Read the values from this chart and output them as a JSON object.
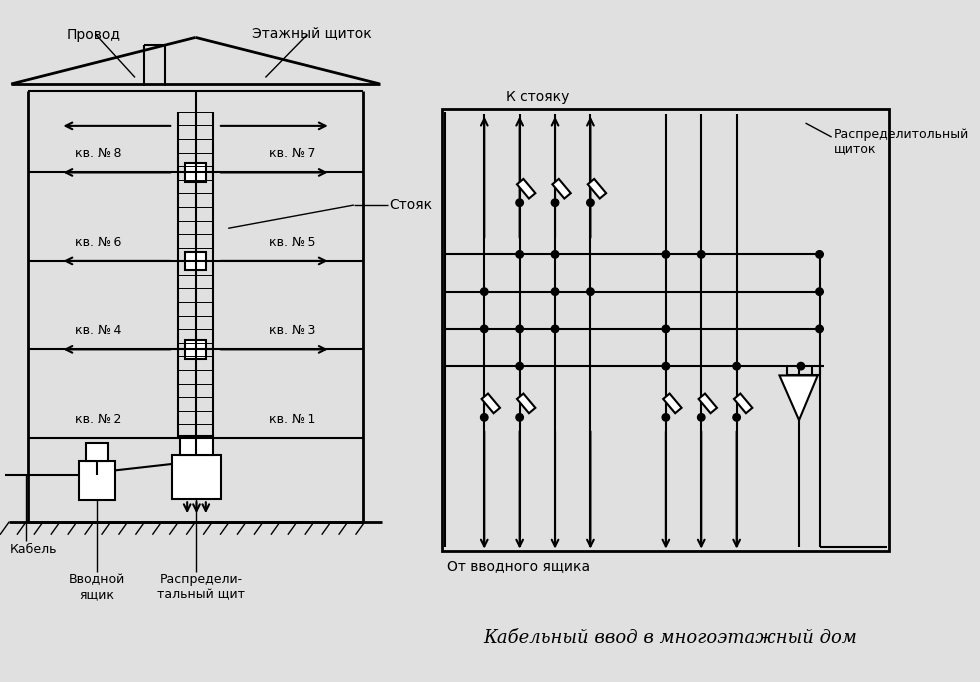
{
  "bg_color": "#e8e8e8",
  "line_color": "#000000",
  "title": "Кабельный ввод в многоэтажный дом",
  "label_provod": "Провод",
  "label_etazh": "Этажный щиток",
  "label_stoyak": "Стояк",
  "label_kabel": "Кабель",
  "label_vvodnoy": "Вводной\nящик",
  "label_rasp_shit": "Распредели-\nтальный щит",
  "label_k_stoyaku": "К стояку",
  "label_rasp_shitok": "Распределитольный\nщиток",
  "label_ot_vvodnogo": "От вводного ящика",
  "apt_labels": [
    "кв. № 8",
    "кв. № 7",
    "кв. № 6",
    "кв. № 5",
    "кв. № 4",
    "кв. № 3",
    "кв. № 2",
    "кв. № 1"
  ]
}
